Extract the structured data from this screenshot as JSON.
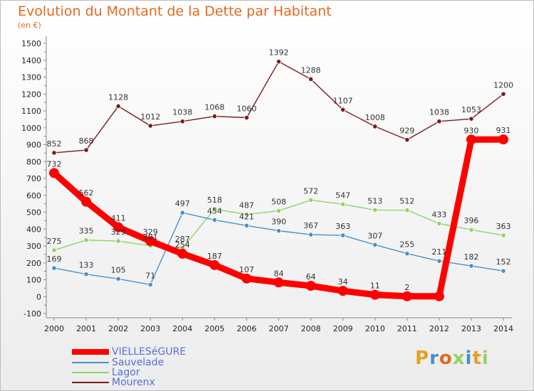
{
  "title": "Evolution du Montant de la Dette par Habitant",
  "subtitle": "(en €)",
  "logo": "Proxiti",
  "chart_data": {
    "type": "line",
    "x": [
      2000,
      2001,
      2002,
      2003,
      2004,
      2005,
      2006,
      2007,
      2008,
      2009,
      2010,
      2011,
      2012,
      2013,
      2014
    ],
    "ylim": [
      -100,
      1500
    ],
    "yticks": [
      -100,
      0,
      100,
      200,
      300,
      400,
      500,
      600,
      700,
      800,
      900,
      1000,
      1100,
      1200,
      1300,
      1400,
      1500
    ],
    "grid": false,
    "legend_placement": "bottom-left",
    "series": [
      {
        "name": "VIELLESéGURE",
        "color": "#ff0000",
        "values": [
          732,
          562,
          411,
          329,
          254,
          187,
          107,
          84,
          64,
          34,
          11,
          2,
          2,
          930,
          931
        ],
        "labels": [
          "732",
          "562",
          "411",
          "329",
          "254",
          "187",
          "107",
          "84",
          "64",
          "34",
          "11",
          "2",
          "",
          "930",
          "931"
        ]
      },
      {
        "name": "Sauvelade",
        "color": "#4a90c8",
        "values": [
          169,
          133,
          105,
          71,
          497,
          454,
          421,
          390,
          367,
          363,
          307,
          255,
          211,
          182,
          152
        ],
        "labels": [
          "169",
          "133",
          "105",
          "71",
          "497",
          "454",
          "421",
          "390",
          "367",
          "363",
          "307",
          "255",
          "211",
          "182",
          "152"
        ]
      },
      {
        "name": "Lagor",
        "color": "#8fd468",
        "values": [
          275,
          335,
          329,
          301,
          287,
          518,
          487,
          508,
          572,
          547,
          513,
          512,
          433,
          396,
          363
        ],
        "labels": [
          "275",
          "335",
          "329",
          "301",
          "287",
          "518",
          "487",
          "508",
          "572",
          "547",
          "513",
          "512",
          "433",
          "396",
          "363"
        ]
      },
      {
        "name": "Mourenx",
        "color": "#7a1c1c",
        "values": [
          852,
          868,
          1128,
          1012,
          1038,
          1068,
          1060,
          1392,
          1288,
          1107,
          1008,
          929,
          1038,
          1053,
          1200
        ],
        "labels": [
          "852",
          "868",
          "1128",
          "1012",
          "1038",
          "1068",
          "1060",
          "1392",
          "1288",
          "1107",
          "1008",
          "929",
          "1038",
          "1053",
          "1200"
        ]
      }
    ]
  }
}
